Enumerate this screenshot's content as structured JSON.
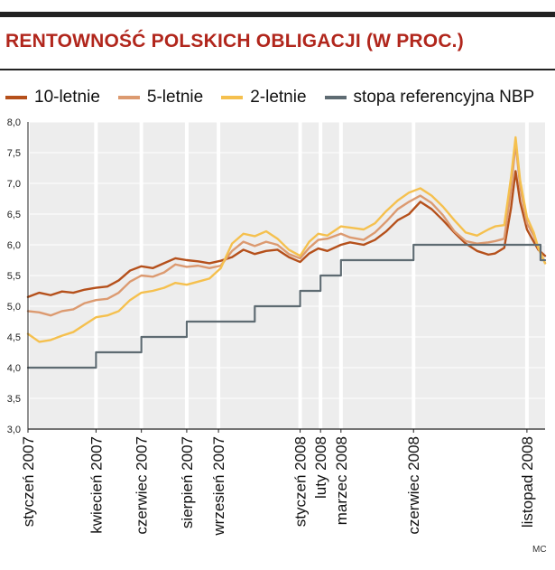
{
  "header": {
    "title": "RENTOWNOŚĆ POLSKICH OBLIGACJI (W PROC.)"
  },
  "credit": "MC",
  "colors": {
    "title": "#b1261c",
    "background": "#ffffff",
    "plot_band": "#ededed",
    "grid_lines": "#ffffff",
    "axis": "#222222"
  },
  "legend": [
    {
      "label": "10-letnie",
      "color": "#b5501b"
    },
    {
      "label": "5-letnie",
      "color": "#dc9a70"
    },
    {
      "label": "2-letnie",
      "color": "#f5c04e"
    },
    {
      "label": "stopa referencyjna NBP",
      "color": "#5e6b72"
    }
  ],
  "chart_data": {
    "type": "line",
    "title": "RENTOWNOŚĆ POLSKICH OBLIGACJI (W PROC.)",
    "xlabel": "",
    "ylabel": "",
    "ylim": [
      3.0,
      8.0
    ],
    "yticks": [
      "8,0",
      "7,5",
      "7,0",
      "6,5",
      "6,0",
      "5,5",
      "5,0",
      "4,5",
      "4,0",
      "3,5",
      "3,0"
    ],
    "xlim": [
      0,
      22.8
    ],
    "grid": true,
    "legend_position": "top",
    "x_ticks": [
      {
        "label": "styczeń 2007",
        "x": 0
      },
      {
        "label": "kwiecień 2007",
        "x": 3
      },
      {
        "label": "czerwiec 2007",
        "x": 5
      },
      {
        "label": "sierpień 2007",
        "x": 7
      },
      {
        "label": "wrzesień 2007",
        "x": 8.4
      },
      {
        "label": "styczeń 2008",
        "x": 12
      },
      {
        "label": "luty 2008",
        "x": 12.9
      },
      {
        "label": "marzec 2008",
        "x": 13.8
      },
      {
        "label": "czerwiec 2008",
        "x": 17
      },
      {
        "label": "listopad 2008",
        "x": 22
      }
    ],
    "series": [
      {
        "name": "10-letnie",
        "color": "#b5501b",
        "points": [
          [
            0,
            5.15
          ],
          [
            0.5,
            5.22
          ],
          [
            1.0,
            5.18
          ],
          [
            1.5,
            5.24
          ],
          [
            2.0,
            5.22
          ],
          [
            2.5,
            5.27
          ],
          [
            3.0,
            5.3
          ],
          [
            3.5,
            5.32
          ],
          [
            4.0,
            5.42
          ],
          [
            4.5,
            5.58
          ],
          [
            5.0,
            5.65
          ],
          [
            5.5,
            5.62
          ],
          [
            6.0,
            5.7
          ],
          [
            6.5,
            5.78
          ],
          [
            7.0,
            5.75
          ],
          [
            7.5,
            5.73
          ],
          [
            8.0,
            5.7
          ],
          [
            8.5,
            5.74
          ],
          [
            9.0,
            5.8
          ],
          [
            9.5,
            5.92
          ],
          [
            10.0,
            5.85
          ],
          [
            10.5,
            5.9
          ],
          [
            11.0,
            5.92
          ],
          [
            11.5,
            5.8
          ],
          [
            12.0,
            5.72
          ],
          [
            12.4,
            5.86
          ],
          [
            12.8,
            5.94
          ],
          [
            13.2,
            5.9
          ],
          [
            13.8,
            6.0
          ],
          [
            14.2,
            6.04
          ],
          [
            14.8,
            6.0
          ],
          [
            15.3,
            6.08
          ],
          [
            15.8,
            6.22
          ],
          [
            16.3,
            6.4
          ],
          [
            16.8,
            6.5
          ],
          [
            17.3,
            6.7
          ],
          [
            17.8,
            6.58
          ],
          [
            18.3,
            6.4
          ],
          [
            18.8,
            6.2
          ],
          [
            19.3,
            6.02
          ],
          [
            19.8,
            5.9
          ],
          [
            20.3,
            5.84
          ],
          [
            20.6,
            5.86
          ],
          [
            21.0,
            5.95
          ],
          [
            21.3,
            6.6
          ],
          [
            21.5,
            7.2
          ],
          [
            21.7,
            6.7
          ],
          [
            22.0,
            6.25
          ],
          [
            22.3,
            6.05
          ],
          [
            22.5,
            5.92
          ],
          [
            22.8,
            5.82
          ]
        ]
      },
      {
        "name": "5-letnie",
        "color": "#dc9a70",
        "points": [
          [
            0,
            4.92
          ],
          [
            0.5,
            4.9
          ],
          [
            1.0,
            4.85
          ],
          [
            1.5,
            4.92
          ],
          [
            2.0,
            4.95
          ],
          [
            2.5,
            5.05
          ],
          [
            3.0,
            5.1
          ],
          [
            3.5,
            5.12
          ],
          [
            4.0,
            5.22
          ],
          [
            4.5,
            5.4
          ],
          [
            5.0,
            5.5
          ],
          [
            5.5,
            5.48
          ],
          [
            6.0,
            5.55
          ],
          [
            6.5,
            5.68
          ],
          [
            7.0,
            5.64
          ],
          [
            7.5,
            5.66
          ],
          [
            8.0,
            5.62
          ],
          [
            8.5,
            5.66
          ],
          [
            9.0,
            5.9
          ],
          [
            9.5,
            6.05
          ],
          [
            10.0,
            5.98
          ],
          [
            10.5,
            6.05
          ],
          [
            11.0,
            6.0
          ],
          [
            11.5,
            5.85
          ],
          [
            12.0,
            5.78
          ],
          [
            12.4,
            5.95
          ],
          [
            12.8,
            6.08
          ],
          [
            13.2,
            6.1
          ],
          [
            13.8,
            6.18
          ],
          [
            14.2,
            6.12
          ],
          [
            14.8,
            6.08
          ],
          [
            15.3,
            6.2
          ],
          [
            15.8,
            6.38
          ],
          [
            16.3,
            6.58
          ],
          [
            16.8,
            6.7
          ],
          [
            17.3,
            6.8
          ],
          [
            17.8,
            6.68
          ],
          [
            18.3,
            6.48
          ],
          [
            18.8,
            6.22
          ],
          [
            19.3,
            6.06
          ],
          [
            19.8,
            6.02
          ],
          [
            20.3,
            6.04
          ],
          [
            20.6,
            6.06
          ],
          [
            21.0,
            6.1
          ],
          [
            21.3,
            6.9
          ],
          [
            21.5,
            7.65
          ],
          [
            21.7,
            6.95
          ],
          [
            22.0,
            6.35
          ],
          [
            22.3,
            6.15
          ],
          [
            22.5,
            5.95
          ],
          [
            22.8,
            5.7
          ]
        ]
      },
      {
        "name": "2-letnie",
        "color": "#f5c04e",
        "points": [
          [
            0,
            4.55
          ],
          [
            0.5,
            4.42
          ],
          [
            1.0,
            4.45
          ],
          [
            1.5,
            4.52
          ],
          [
            2.0,
            4.58
          ],
          [
            2.5,
            4.7
          ],
          [
            3.0,
            4.82
          ],
          [
            3.5,
            4.85
          ],
          [
            4.0,
            4.92
          ],
          [
            4.5,
            5.1
          ],
          [
            5.0,
            5.22
          ],
          [
            5.5,
            5.25
          ],
          [
            6.0,
            5.3
          ],
          [
            6.5,
            5.38
          ],
          [
            7.0,
            5.35
          ],
          [
            7.5,
            5.4
          ],
          [
            8.0,
            5.45
          ],
          [
            8.5,
            5.62
          ],
          [
            9.0,
            6.02
          ],
          [
            9.5,
            6.18
          ],
          [
            10.0,
            6.14
          ],
          [
            10.5,
            6.22
          ],
          [
            11.0,
            6.1
          ],
          [
            11.5,
            5.92
          ],
          [
            12.0,
            5.82
          ],
          [
            12.4,
            6.05
          ],
          [
            12.8,
            6.18
          ],
          [
            13.2,
            6.15
          ],
          [
            13.8,
            6.3
          ],
          [
            14.2,
            6.28
          ],
          [
            14.8,
            6.25
          ],
          [
            15.3,
            6.35
          ],
          [
            15.8,
            6.55
          ],
          [
            16.3,
            6.72
          ],
          [
            16.8,
            6.85
          ],
          [
            17.3,
            6.92
          ],
          [
            17.8,
            6.8
          ],
          [
            18.3,
            6.62
          ],
          [
            18.8,
            6.4
          ],
          [
            19.3,
            6.2
          ],
          [
            19.8,
            6.15
          ],
          [
            20.3,
            6.25
          ],
          [
            20.6,
            6.3
          ],
          [
            21.0,
            6.32
          ],
          [
            21.3,
            7.1
          ],
          [
            21.5,
            7.75
          ],
          [
            21.7,
            7.05
          ],
          [
            22.0,
            6.45
          ],
          [
            22.3,
            6.2
          ],
          [
            22.5,
            5.95
          ],
          [
            22.8,
            5.7
          ]
        ]
      },
      {
        "name": "stopa referencyjna NBP",
        "color": "#5e6b72",
        "step": true,
        "points": [
          [
            0,
            4.0
          ],
          [
            3.0,
            4.25
          ],
          [
            5.0,
            4.5
          ],
          [
            7.0,
            4.75
          ],
          [
            10.0,
            5.0
          ],
          [
            12.0,
            5.25
          ],
          [
            12.9,
            5.5
          ],
          [
            13.8,
            5.75
          ],
          [
            17.0,
            6.0
          ],
          [
            22.6,
            5.75
          ],
          [
            22.8,
            5.75
          ]
        ]
      }
    ]
  }
}
